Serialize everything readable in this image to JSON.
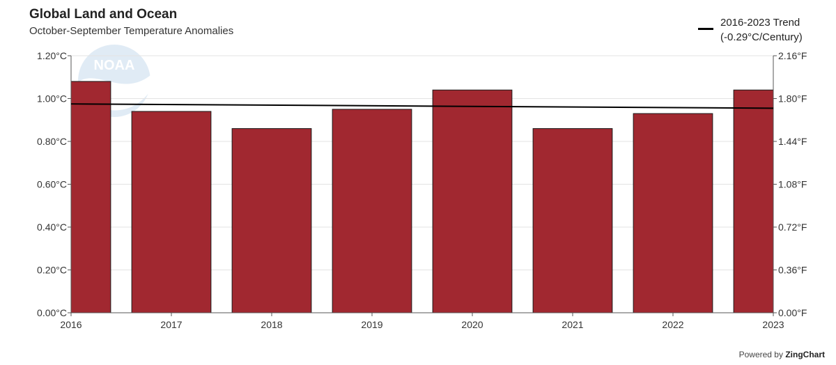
{
  "chart_data": {
    "type": "bar",
    "title": "Global Land and Ocean",
    "subtitle": "October-September Temperature Anomalies",
    "categories": [
      "2016",
      "2017",
      "2018",
      "2019",
      "2020",
      "2021",
      "2022",
      "2023"
    ],
    "series": [
      {
        "values": [
          1.08,
          0.94,
          0.86,
          0.95,
          1.04,
          0.86,
          0.93,
          1.04
        ],
        "color": "#a12830"
      }
    ],
    "trend": {
      "name": "2016-2023 Trend (-0.29°C/Century)",
      "line1": "2016-2023 Trend",
      "line2": "(-0.29°C/Century)",
      "start": 0.975,
      "end": 0.955,
      "color": "#000000"
    },
    "ylim": [
      0,
      1.2
    ],
    "y_ticks_left": [
      "0.00°C",
      "0.20°C",
      "0.40°C",
      "0.60°C",
      "0.80°C",
      "1.00°C",
      "1.20°C"
    ],
    "y_ticks_right": [
      "0.00°F",
      "0.36°F",
      "0.72°F",
      "1.08°F",
      "1.44°F",
      "1.80°F",
      "2.16°F"
    ],
    "grid": true,
    "legend_position": "top-right"
  },
  "footer": {
    "powered_prefix": "Powered by",
    "powered_brand": "ZingChart"
  },
  "watermark": "NOAA"
}
